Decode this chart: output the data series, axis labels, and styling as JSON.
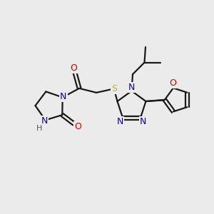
{
  "background_color": "#ebebeb",
  "bond_color": "#1a1a1a",
  "N_color": "#0000cc",
  "O_color": "#dd0000",
  "S_color": "#bbbb00",
  "H_color": "#555555",
  "line_width": 1.6,
  "figsize": [
    3.0,
    3.0
  ],
  "dpi": 100,
  "xlim": [
    0,
    10
  ],
  "ylim": [
    0,
    10
  ]
}
